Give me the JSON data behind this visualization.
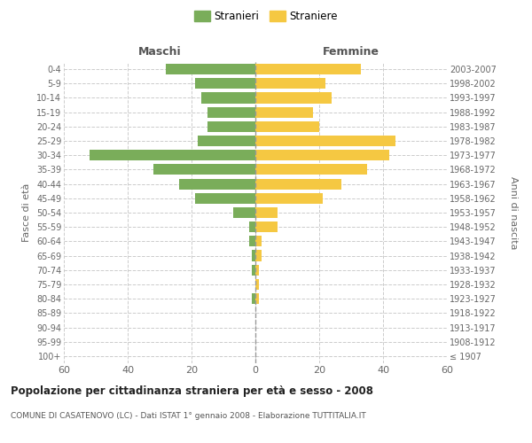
{
  "age_groups": [
    "100+",
    "95-99",
    "90-94",
    "85-89",
    "80-84",
    "75-79",
    "70-74",
    "65-69",
    "60-64",
    "55-59",
    "50-54",
    "45-49",
    "40-44",
    "35-39",
    "30-34",
    "25-29",
    "20-24",
    "15-19",
    "10-14",
    "5-9",
    "0-4"
  ],
  "birth_years": [
    "≤ 1907",
    "1908-1912",
    "1913-1917",
    "1918-1922",
    "1923-1927",
    "1928-1932",
    "1933-1937",
    "1938-1942",
    "1943-1947",
    "1948-1952",
    "1953-1957",
    "1958-1962",
    "1963-1967",
    "1968-1972",
    "1973-1977",
    "1978-1982",
    "1983-1987",
    "1988-1992",
    "1993-1997",
    "1998-2002",
    "2003-2007"
  ],
  "maschi": [
    0,
    0,
    0,
    0,
    1,
    0,
    1,
    1,
    2,
    2,
    7,
    19,
    24,
    32,
    52,
    18,
    15,
    15,
    17,
    19,
    28
  ],
  "femmine": [
    0,
    0,
    0,
    0,
    1,
    1,
    1,
    2,
    2,
    7,
    7,
    21,
    27,
    35,
    42,
    44,
    20,
    18,
    24,
    22,
    33
  ],
  "maschi_color": "#7aad5a",
  "femmine_color": "#f5c842",
  "title": "Popolazione per cittadinanza straniera per età e sesso - 2008",
  "subtitle": "COMUNE DI CASATENOVO (LC) - Dati ISTAT 1° gennaio 2008 - Elaborazione TUTTITALIA.IT",
  "legend_maschi": "Stranieri",
  "legend_femmine": "Straniere",
  "xlabel_left": "Maschi",
  "xlabel_right": "Femmine",
  "ylabel_left": "Fasce di età",
  "ylabel_right": "Anni di nascita",
  "xlim": 60,
  "background_color": "#ffffff",
  "grid_color": "#cccccc"
}
